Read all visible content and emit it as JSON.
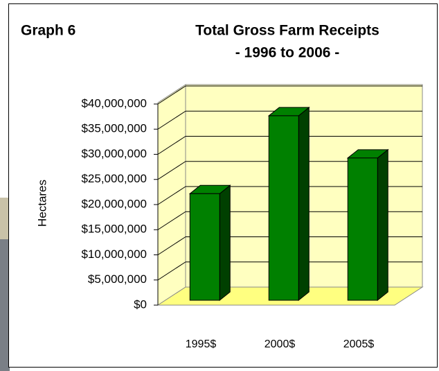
{
  "chart_data": {
    "type": "bar",
    "annotation": "Graph 6",
    "title": "Total Gross Farm Receipts",
    "subtitle": "- 1996 to 2006 -",
    "y_label": "Hectares",
    "categories": [
      "1995$",
      "2000$",
      "2005$"
    ],
    "values": [
      21200000,
      36700000,
      28300000
    ],
    "color": "#008000",
    "ylim": [
      0,
      40000000
    ],
    "yticks": [
      {
        "value": 0,
        "label": "$0"
      },
      {
        "value": 5000000,
        "label": "$5,000,000"
      },
      {
        "value": 10000000,
        "label": "$10,000,000"
      },
      {
        "value": 15000000,
        "label": "$15,000,000"
      },
      {
        "value": 20000000,
        "label": "$20,000,000"
      },
      {
        "value": 25000000,
        "label": "$25,000,000"
      },
      {
        "value": 30000000,
        "label": "$30,000,000"
      },
      {
        "value": 35000000,
        "label": "$35,000,000"
      },
      {
        "value": 40000000,
        "label": "$40,000,000"
      }
    ],
    "grid": true
  }
}
